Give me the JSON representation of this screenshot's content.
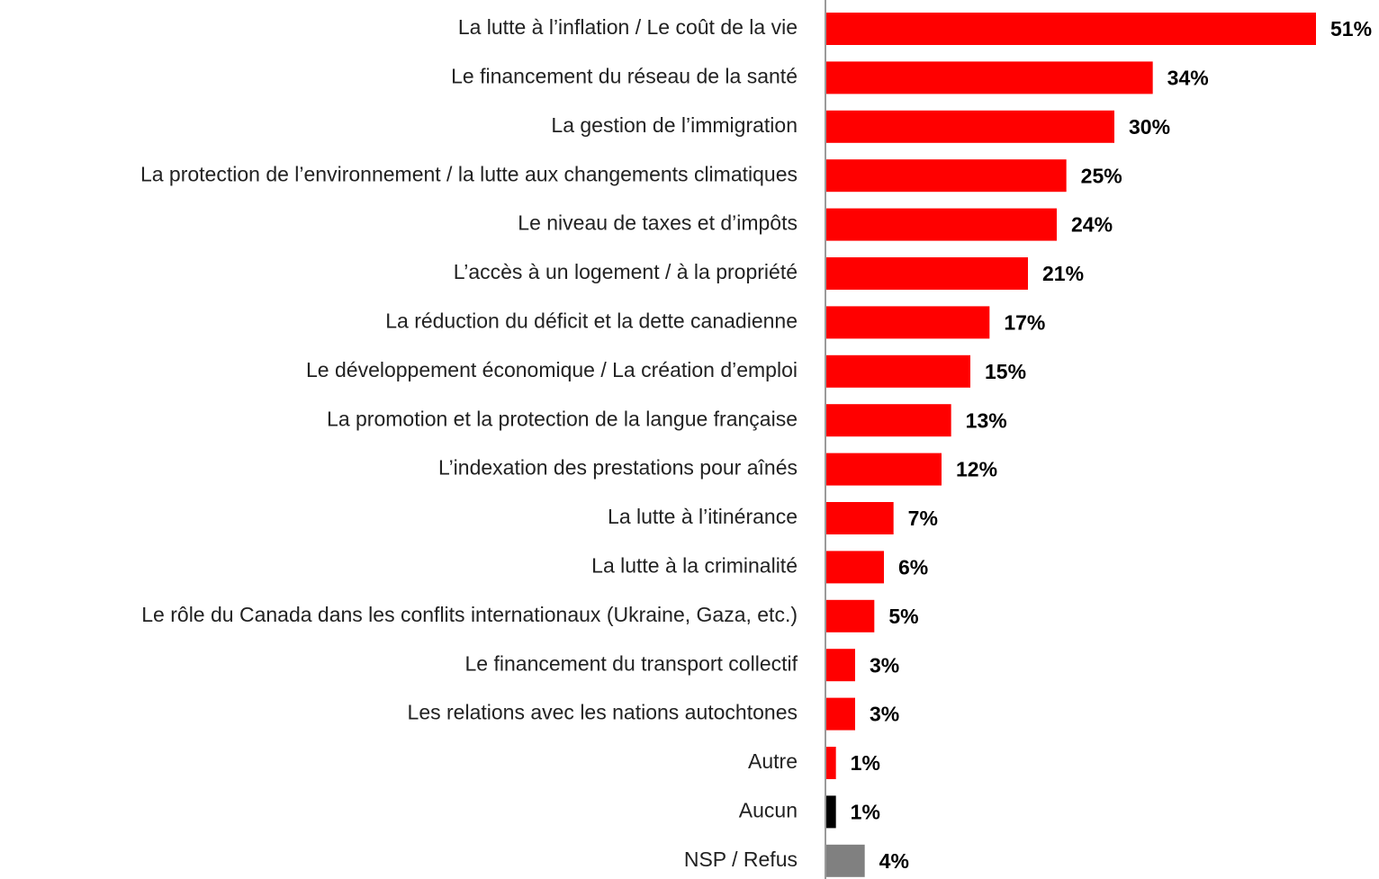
{
  "chart_data": {
    "type": "bar",
    "orientation": "horizontal",
    "categories": [
      "La lutte à l’inflation / Le coût de la vie",
      "Le financement du réseau de la santé",
      "La gestion de l’immigration",
      "La protection de l’environnement / la lutte aux changements climatiques",
      "Le niveau de taxes et d’impôts",
      "L’accès à un logement / à la propriété",
      "La réduction du déficit et la dette canadienne",
      "Le développement économique / La création d’emploi",
      "La promotion et la protection de la langue française",
      "L’indexation des prestations pour aînés",
      "La lutte à l’itinérance",
      "La lutte à la criminalité",
      "Le rôle du Canada dans les conflits internationaux (Ukraine, Gaza, etc.)",
      "Le financement du transport collectif",
      "Les relations avec les nations autochtones",
      "Autre",
      "Aucun",
      "NSP / Refus"
    ],
    "values": [
      51,
      34,
      30,
      25,
      24,
      21,
      17,
      15,
      13,
      12,
      7,
      6,
      5,
      3,
      3,
      1,
      1,
      4
    ],
    "value_labels": [
      "51%",
      "34%",
      "30%",
      "25%",
      "24%",
      "21%",
      "17%",
      "15%",
      "13%",
      "12%",
      "7%",
      "6%",
      "5%",
      "3%",
      "3%",
      "1%",
      "1%",
      "4%"
    ],
    "colors": [
      "#ff0000",
      "#ff0000",
      "#ff0000",
      "#ff0000",
      "#ff0000",
      "#ff0000",
      "#ff0000",
      "#ff0000",
      "#ff0000",
      "#ff0000",
      "#ff0000",
      "#ff0000",
      "#ff0000",
      "#ff0000",
      "#ff0000",
      "#ff0000",
      "#000000",
      "#808080"
    ]
  }
}
